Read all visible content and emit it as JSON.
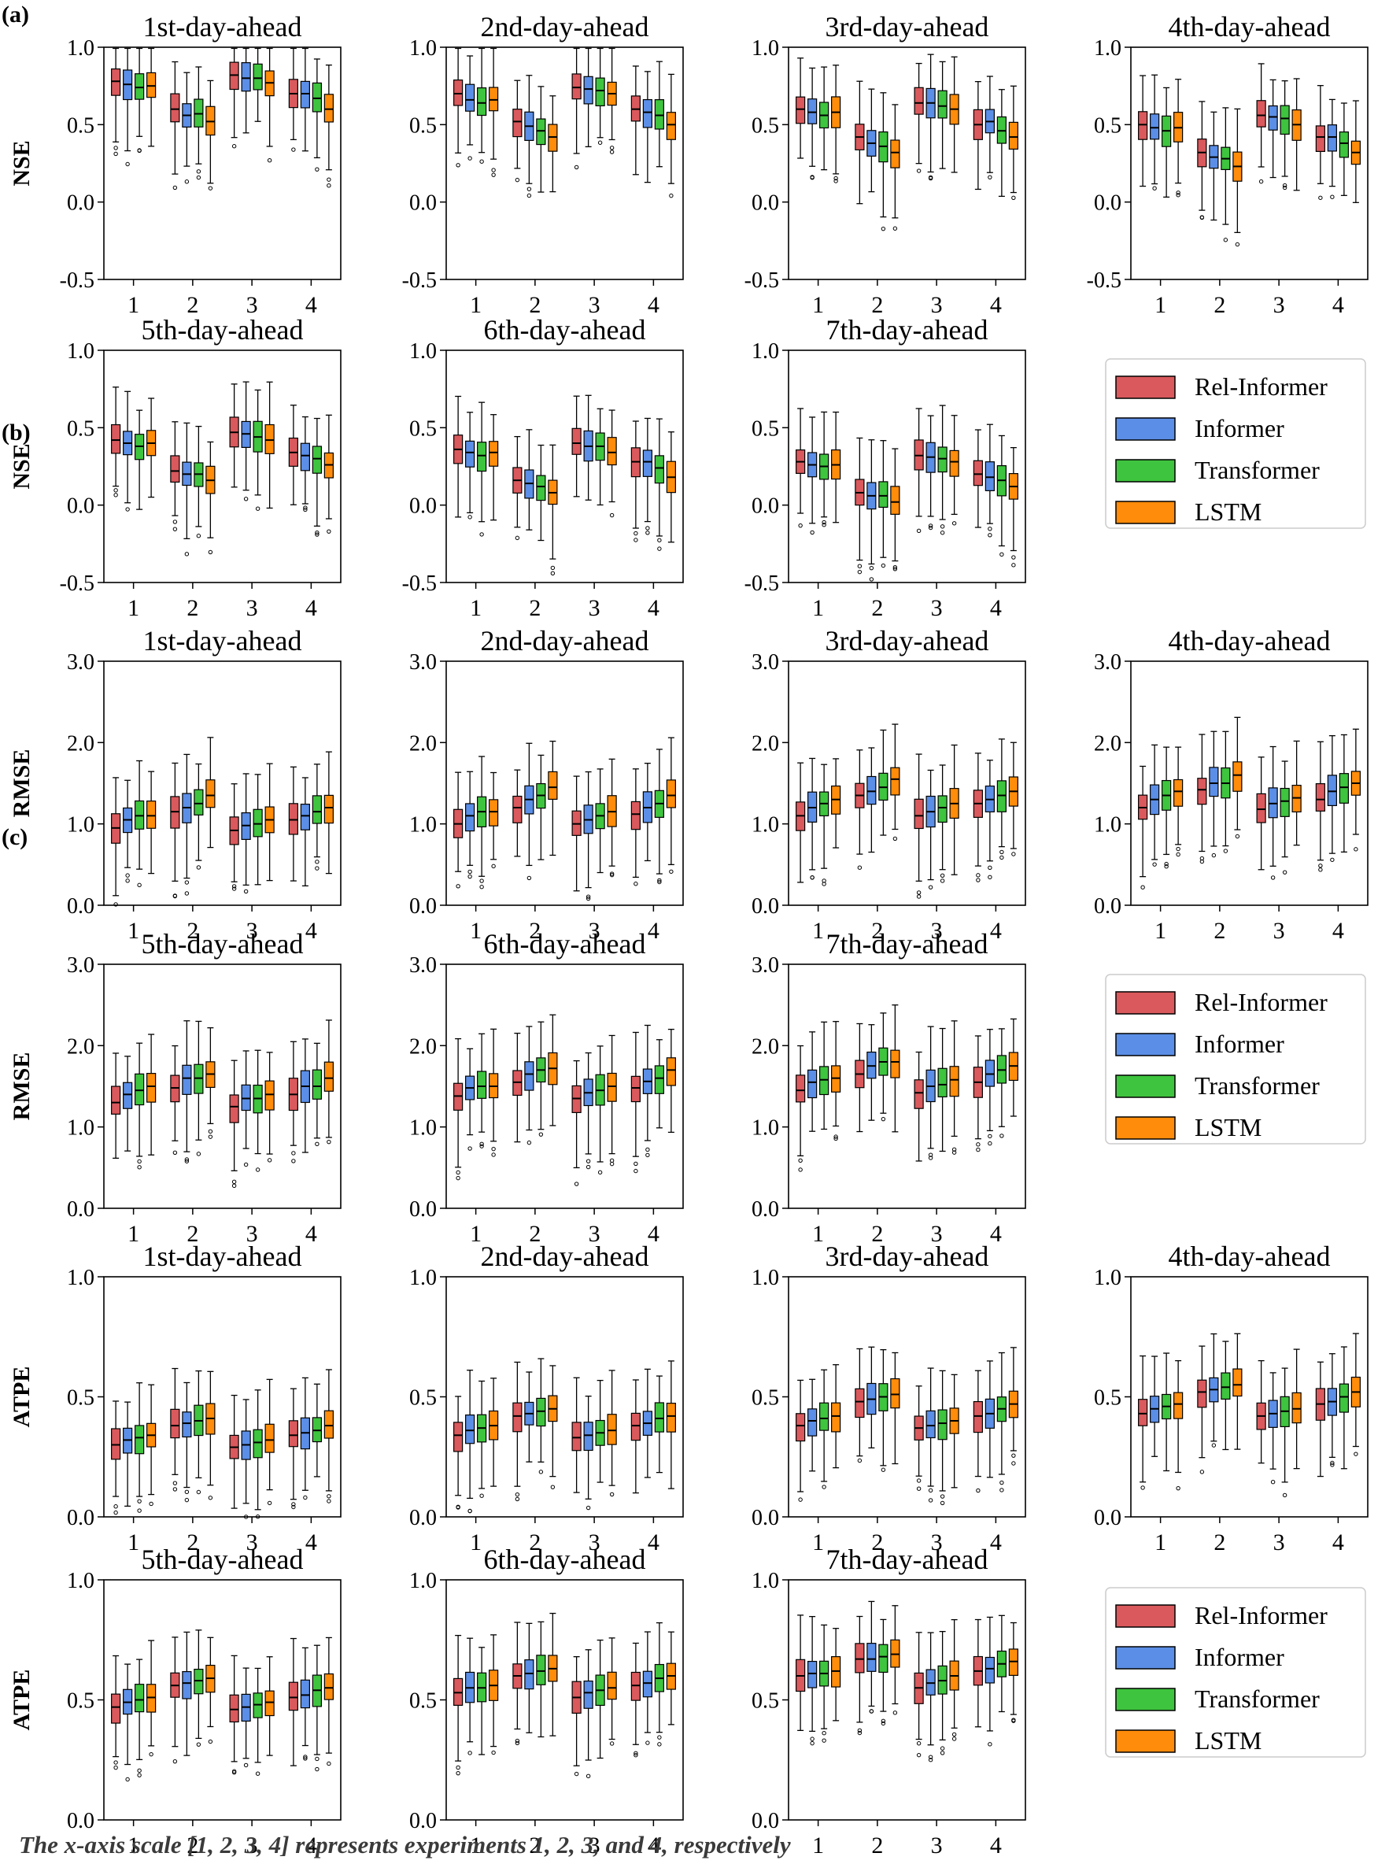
{
  "figure": {
    "caption": "The x-axis scale [1, 2, 3, 4] represents experiments 1, 2, 3, and 4, respectively",
    "panel_labels": [
      "(a)",
      "(b)",
      "(c)"
    ],
    "legend": [
      {
        "label": "Rel-Informer",
        "color": "#d9595c"
      },
      {
        "label": "Informer",
        "color": "#5b8ee6"
      },
      {
        "label": "Transformer",
        "color": "#3ec43e"
      },
      {
        "label": "LSTM",
        "color": "#ff8c0a"
      }
    ]
  },
  "chart_data": [
    {
      "type": "box",
      "panel": "(a)",
      "ylabel": "NSE",
      "ylim": [
        -0.5,
        1.0
      ],
      "yticks": [
        "-0.5",
        "0.0",
        "0.5",
        "1.0"
      ],
      "categories": [
        "1",
        "2",
        "3",
        "4"
      ],
      "series_names": [
        "Rel-Informer",
        "Informer",
        "Transformer",
        "LSTM"
      ],
      "subplots": [
        {
          "title": "1st-day-ahead",
          "medians": [
            [
              0.78,
              0.76,
              0.74,
              0.75
            ],
            [
              0.6,
              0.56,
              0.57,
              0.52
            ],
            [
              0.82,
              0.8,
              0.8,
              0.77
            ],
            [
              0.7,
              0.7,
              0.67,
              0.6
            ]
          ]
        },
        {
          "title": "2nd-day-ahead",
          "medians": [
            [
              0.7,
              0.66,
              0.64,
              0.66
            ],
            [
              0.52,
              0.49,
              0.46,
              0.42
            ],
            [
              0.74,
              0.73,
              0.72,
              0.7
            ],
            [
              0.6,
              0.58,
              0.56,
              0.5
            ]
          ]
        },
        {
          "title": "3rd-day-ahead",
          "medians": [
            [
              0.6,
              0.58,
              0.56,
              0.58
            ],
            [
              0.42,
              0.38,
              0.36,
              0.32
            ],
            [
              0.64,
              0.64,
              0.62,
              0.6
            ],
            [
              0.5,
              0.52,
              0.46,
              0.42
            ]
          ]
        },
        {
          "title": "4th-day-ahead",
          "medians": [
            [
              0.5,
              0.48,
              0.46,
              0.48
            ],
            [
              0.32,
              0.29,
              0.28,
              0.23
            ],
            [
              0.56,
              0.55,
              0.54,
              0.5
            ],
            [
              0.42,
              0.42,
              0.38,
              0.32
            ]
          ]
        },
        {
          "title": "5th-day-ahead",
          "medians": [
            [
              0.42,
              0.4,
              0.38,
              0.4
            ],
            [
              0.22,
              0.2,
              0.2,
              0.16
            ],
            [
              0.47,
              0.46,
              0.44,
              0.42
            ],
            [
              0.34,
              0.32,
              0.3,
              0.26
            ]
          ]
        },
        {
          "title": "6th-day-ahead",
          "medians": [
            [
              0.36,
              0.34,
              0.32,
              0.34
            ],
            [
              0.16,
              0.14,
              0.12,
              0.08
            ],
            [
              0.4,
              0.38,
              0.38,
              0.34
            ],
            [
              0.28,
              0.28,
              0.24,
              0.18
            ]
          ]
        },
        {
          "title": "7th-day-ahead",
          "medians": [
            [
              0.28,
              0.26,
              0.25,
              0.26
            ],
            [
              0.08,
              0.06,
              0.06,
              0.02
            ],
            [
              0.32,
              0.31,
              0.3,
              0.28
            ],
            [
              0.2,
              0.18,
              0.16,
              0.12
            ]
          ]
        }
      ]
    },
    {
      "type": "box",
      "panel": "(b)",
      "ylabel": "RMSE",
      "ylim": [
        0.0,
        3.0
      ],
      "yticks": [
        "0.0",
        "1.0",
        "2.0",
        "3.0"
      ],
      "categories": [
        "1",
        "2",
        "3",
        "4"
      ],
      "series_names": [
        "Rel-Informer",
        "Informer",
        "Transformer",
        "LSTM"
      ],
      "subplots": [
        {
          "title": "1st-day-ahead",
          "medians": [
            [
              0.95,
              1.05,
              1.1,
              1.1
            ],
            [
              1.15,
              1.2,
              1.25,
              1.35
            ],
            [
              0.92,
              0.98,
              1.0,
              1.05
            ],
            [
              1.05,
              1.1,
              1.15,
              1.2
            ]
          ]
        },
        {
          "title": "2nd-day-ahead",
          "medians": [
            [
              1.0,
              1.1,
              1.15,
              1.15
            ],
            [
              1.2,
              1.3,
              1.35,
              1.45
            ],
            [
              1.0,
              1.05,
              1.1,
              1.15
            ],
            [
              1.12,
              1.2,
              1.25,
              1.35
            ]
          ]
        },
        {
          "title": "3rd-day-ahead",
          "medians": [
            [
              1.1,
              1.2,
              1.25,
              1.3
            ],
            [
              1.35,
              1.4,
              1.45,
              1.55
            ],
            [
              1.1,
              1.15,
              1.2,
              1.25
            ],
            [
              1.25,
              1.3,
              1.35,
              1.4
            ]
          ]
        },
        {
          "title": "4th-day-ahead",
          "medians": [
            [
              1.2,
              1.3,
              1.35,
              1.4
            ],
            [
              1.42,
              1.5,
              1.5,
              1.6
            ],
            [
              1.18,
              1.25,
              1.28,
              1.32
            ],
            [
              1.3,
              1.4,
              1.45,
              1.5
            ]
          ]
        },
        {
          "title": "5th-day-ahead",
          "medians": [
            [
              1.3,
              1.4,
              1.45,
              1.5
            ],
            [
              1.48,
              1.6,
              1.6,
              1.65
            ],
            [
              1.25,
              1.35,
              1.35,
              1.4
            ],
            [
              1.4,
              1.5,
              1.5,
              1.6
            ]
          ]
        },
        {
          "title": "6th-day-ahead",
          "medians": [
            [
              1.38,
              1.48,
              1.5,
              1.5
            ],
            [
              1.55,
              1.65,
              1.7,
              1.72
            ],
            [
              1.35,
              1.42,
              1.45,
              1.5
            ],
            [
              1.48,
              1.56,
              1.6,
              1.7
            ]
          ]
        },
        {
          "title": "7th-day-ahead",
          "medians": [
            [
              1.45,
              1.55,
              1.58,
              1.6
            ],
            [
              1.65,
              1.75,
              1.8,
              1.8
            ],
            [
              1.42,
              1.5,
              1.52,
              1.58
            ],
            [
              1.55,
              1.65,
              1.7,
              1.75
            ]
          ]
        }
      ]
    },
    {
      "type": "box",
      "panel": "(c)",
      "ylabel": "ATPE",
      "ylim": [
        0.0,
        1.0
      ],
      "yticks": [
        "0.0",
        "0.5",
        "1.0"
      ],
      "categories": [
        "1",
        "2",
        "3",
        "4"
      ],
      "series_names": [
        "Rel-Informer",
        "Informer",
        "Transformer",
        "LSTM"
      ],
      "subplots": [
        {
          "title": "1st-day-ahead",
          "medians": [
            [
              0.3,
              0.32,
              0.33,
              0.34
            ],
            [
              0.38,
              0.39,
              0.4,
              0.41
            ],
            [
              0.29,
              0.3,
              0.31,
              0.32
            ],
            [
              0.34,
              0.35,
              0.36,
              0.38
            ]
          ]
        },
        {
          "title": "2nd-day-ahead",
          "medians": [
            [
              0.34,
              0.36,
              0.37,
              0.38
            ],
            [
              0.42,
              0.43,
              0.44,
              0.45
            ],
            [
              0.33,
              0.34,
              0.35,
              0.36
            ],
            [
              0.38,
              0.39,
              0.41,
              0.42
            ]
          ]
        },
        {
          "title": "3rd-day-ahead",
          "medians": [
            [
              0.38,
              0.4,
              0.41,
              0.42
            ],
            [
              0.48,
              0.49,
              0.5,
              0.51
            ],
            [
              0.37,
              0.38,
              0.39,
              0.4
            ],
            [
              0.42,
              0.43,
              0.45,
              0.47
            ]
          ]
        },
        {
          "title": "4th-day-ahead",
          "medians": [
            [
              0.43,
              0.45,
              0.46,
              0.47
            ],
            [
              0.52,
              0.53,
              0.54,
              0.55
            ],
            [
              0.42,
              0.43,
              0.44,
              0.45
            ],
            [
              0.47,
              0.48,
              0.5,
              0.52
            ]
          ]
        },
        {
          "title": "5th-day-ahead",
          "medians": [
            [
              0.47,
              0.49,
              0.5,
              0.51
            ],
            [
              0.56,
              0.57,
              0.58,
              0.59
            ],
            [
              0.46,
              0.47,
              0.48,
              0.49
            ],
            [
              0.51,
              0.52,
              0.54,
              0.55
            ]
          ]
        },
        {
          "title": "6th-day-ahead",
          "medians": [
            [
              0.53,
              0.55,
              0.55,
              0.56
            ],
            [
              0.6,
              0.61,
              0.62,
              0.63
            ],
            [
              0.51,
              0.53,
              0.54,
              0.55
            ],
            [
              0.56,
              0.57,
              0.59,
              0.6
            ]
          ]
        },
        {
          "title": "7th-day-ahead",
          "medians": [
            [
              0.6,
              0.61,
              0.61,
              0.62
            ],
            [
              0.67,
              0.67,
              0.68,
              0.69
            ],
            [
              0.55,
              0.57,
              0.58,
              0.6
            ],
            [
              0.62,
              0.63,
              0.65,
              0.66
            ]
          ]
        }
      ]
    }
  ]
}
